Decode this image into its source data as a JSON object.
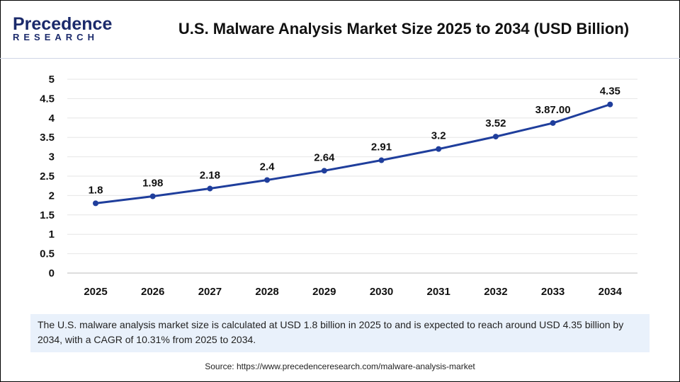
{
  "logo": {
    "line1": "Precedence",
    "line2": "RESEARCH"
  },
  "title": "U.S. Malware Analysis Market Size 2025 to 2034 (USD Billion)",
  "chart_data": {
    "type": "line",
    "title": "U.S. Malware Analysis Market Size 2025 to 2034 (USD Billion)",
    "categories": [
      "2025",
      "2026",
      "2027",
      "2028",
      "2029",
      "2030",
      "2031",
      "2032",
      "2033",
      "2034"
    ],
    "values": [
      1.8,
      1.98,
      2.18,
      2.4,
      2.64,
      2.91,
      3.2,
      3.52,
      3.87,
      4.35
    ],
    "data_labels": [
      "1.8",
      "1.98",
      "2.18",
      "2.4",
      "2.64",
      "2.91",
      "3.2",
      "3.52",
      "3.87.00",
      "4.35"
    ],
    "yticks": [
      "0",
      "0.5",
      "1",
      "1.5",
      "2",
      "2.5",
      "3",
      "3.5",
      "4",
      "4.5",
      "5"
    ],
    "ylim": [
      0,
      5
    ],
    "grid": true,
    "color": "#1f3e9c"
  },
  "description": "The U.S. malware analysis market size is calculated at USD 1.8 billion in 2025 to and is expected to reach around USD 4.35 billion by 2034, with a CAGR of 10.31% from 2025 to 2034.",
  "source": "Source: https://www.precedenceresearch.com/malware-analysis-market"
}
